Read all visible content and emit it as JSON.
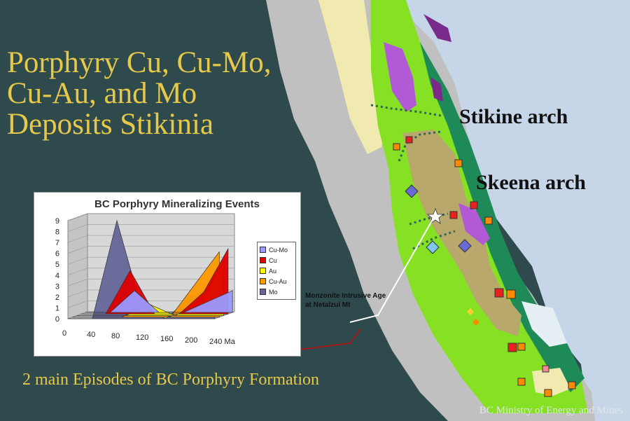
{
  "slide": {
    "title_lines": [
      "Porphyry Cu, Cu-Mo,",
      "Cu-Au, and Mo",
      "Deposits Stikinia"
    ],
    "caption": "2 main Episodes of  BC Porphyry Formation",
    "credit": "BC Ministry of Energy and Mines"
  },
  "map": {
    "labels": {
      "stikine": "Stikine arch",
      "skeena": "Skeena arch"
    },
    "callout_lines": [
      "Monzonite Intrusive Age",
      "at Netalzul Mt"
    ],
    "colors": {
      "ocean": "#2f4a4d",
      "land": "#bdbdbd",
      "green": "#86e023",
      "dark_green": "#1e8a57",
      "tan": "#b8a86b",
      "purple": "#b25ad6",
      "yellow": "#f1eab0",
      "sea_blue": "#c6d6e8"
    }
  },
  "chart_data": {
    "type": "area",
    "title": "BC Porphyry Mineralizing Events",
    "xlabel": "",
    "ylabel": "",
    "x_ticks": [
      "0",
      "40",
      "80",
      "120",
      "160",
      "200",
      "240 Ma"
    ],
    "y_ticks": [
      "0",
      "1",
      "2",
      "3",
      "4",
      "5",
      "6",
      "7",
      "8",
      "9"
    ],
    "ylim": [
      0,
      9
    ],
    "x": [
      0,
      40,
      80,
      120,
      160,
      200,
      240
    ],
    "series": [
      {
        "name": "Cu-Mo",
        "color": "#9999ff",
        "values": [
          0,
          0,
          2,
          0,
          0,
          1,
          2
        ]
      },
      {
        "name": "Cu",
        "color": "#dd0000",
        "values": [
          0,
          0,
          4,
          0,
          0,
          2,
          6
        ]
      },
      {
        "name": "Au",
        "color": "#ffff00",
        "values": [
          0,
          0,
          0,
          1,
          0,
          1,
          5
        ]
      },
      {
        "name": "Cu-Au",
        "color": "#ff9900",
        "values": [
          0,
          0,
          0,
          1,
          0,
          3,
          6
        ]
      },
      {
        "name": "Mo",
        "color": "#666699",
        "values": [
          0,
          0,
          9,
          1,
          0,
          2,
          3
        ]
      }
    ],
    "legend_position": "right",
    "grid": true
  }
}
